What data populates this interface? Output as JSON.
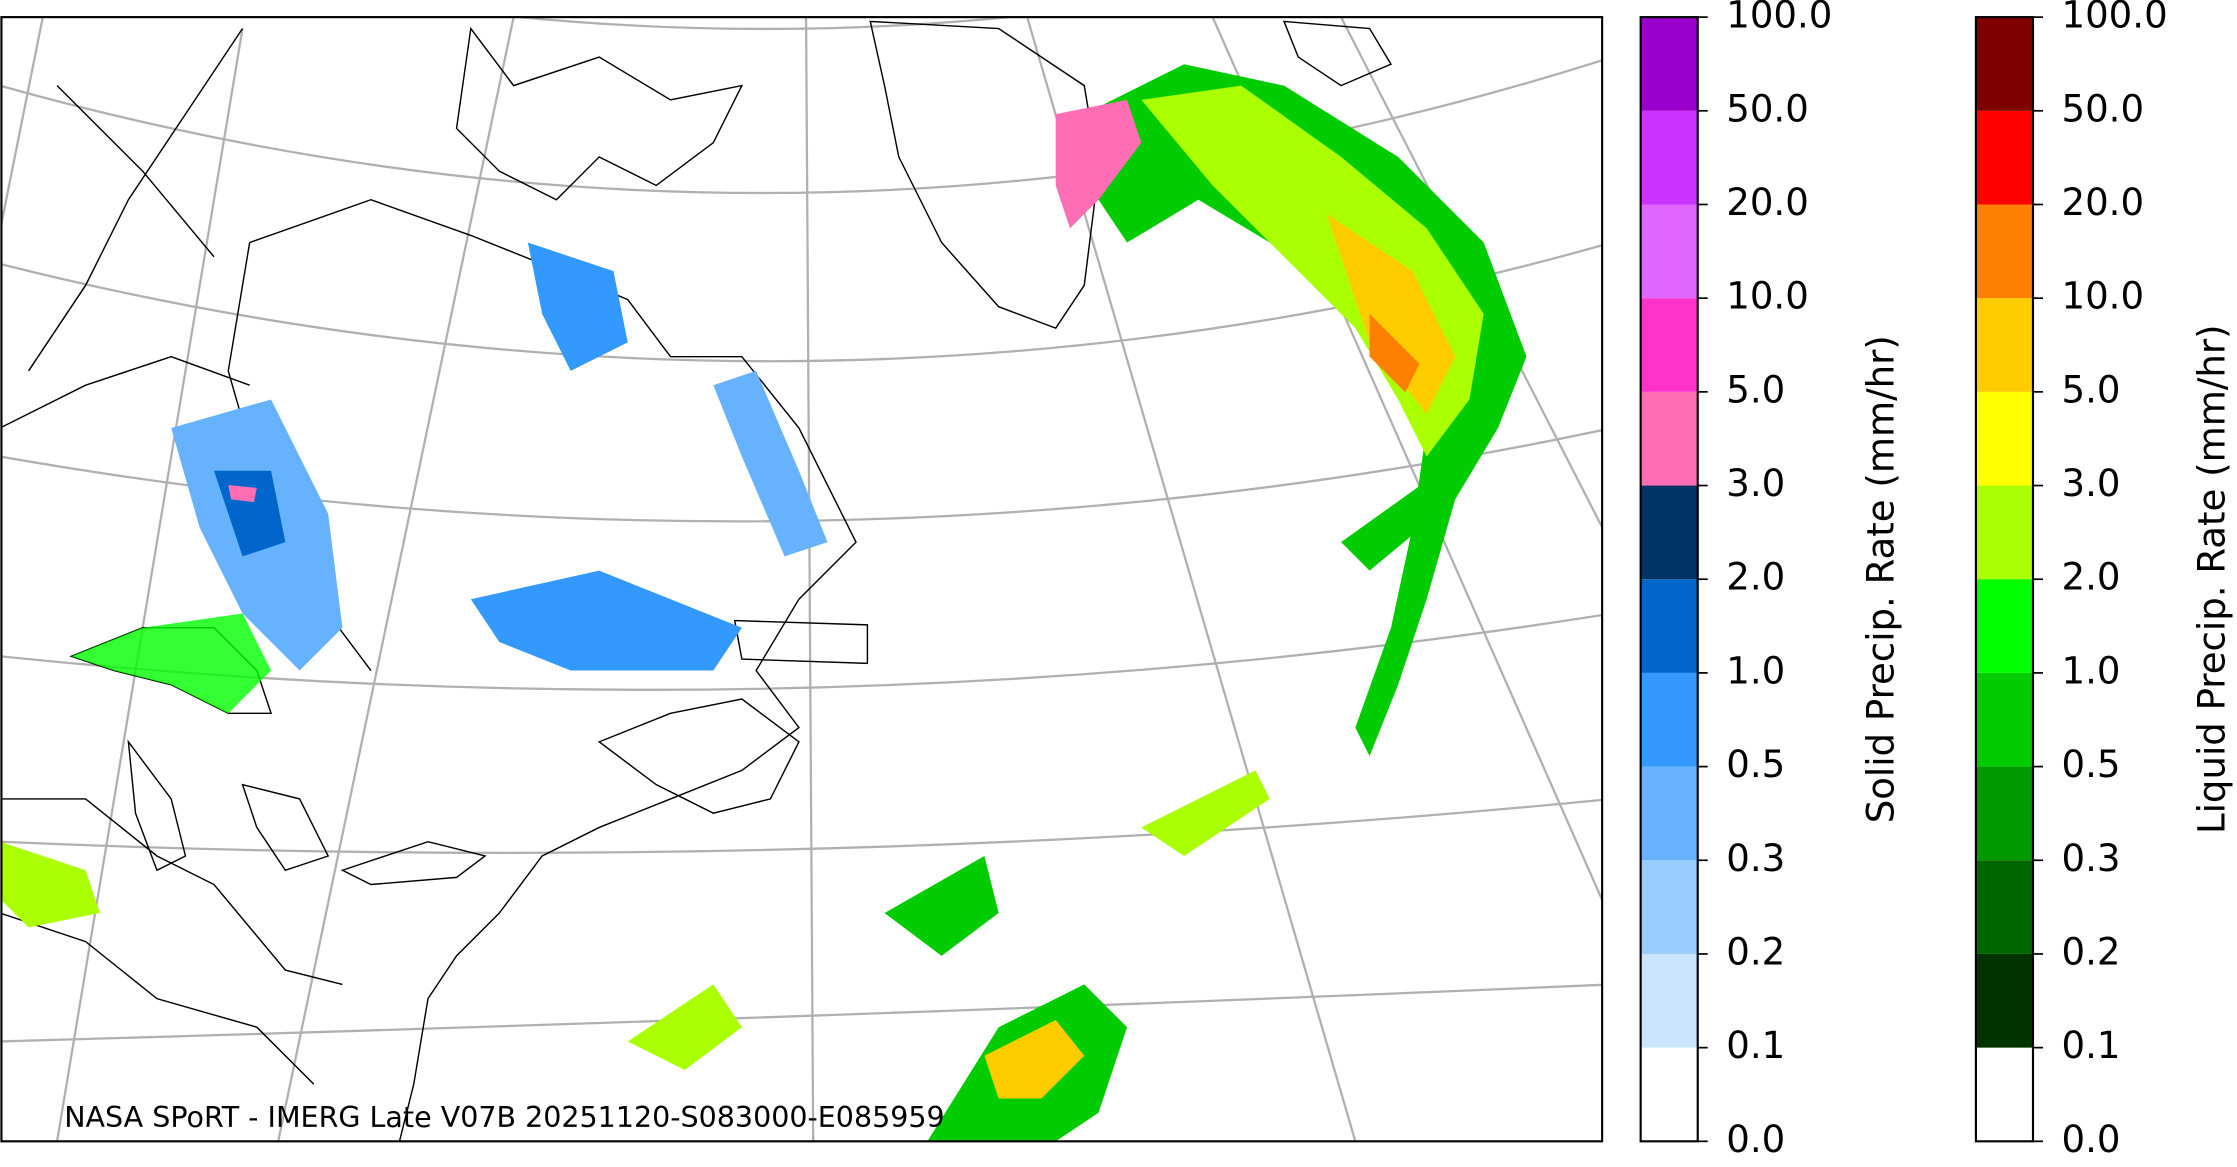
{
  "map": {
    "caption": "NASA SPoRT - IMERG Late V07B 20251120-S083000-E085959"
  },
  "colorbars": [
    {
      "label": "Solid Precip. Rate (mm/hr)",
      "ticks": [
        {
          "value": 0,
          "label": "0.0"
        },
        {
          "value": 0.1,
          "label": "0.1"
        },
        {
          "value": 0.2,
          "label": "0.2"
        },
        {
          "value": 0.3,
          "label": "0.3"
        },
        {
          "value": 0.5,
          "label": "0.5"
        },
        {
          "value": 1,
          "label": "1.0"
        },
        {
          "value": 2,
          "label": "2.0"
        },
        {
          "value": 3,
          "label": "3.0"
        },
        {
          "value": 5,
          "label": "5.0"
        },
        {
          "value": 10,
          "label": "10.0"
        },
        {
          "value": 20,
          "label": "20.0"
        },
        {
          "value": 50,
          "label": "50.0"
        },
        {
          "value": 100,
          "label": "100.0"
        }
      ],
      "colors": [
        "#ffffff",
        "#cce5ff",
        "#99ccff",
        "#66b2ff",
        "#3399ff",
        "#0066cc",
        "#003366",
        "#ff6eb4",
        "#ff33cc",
        "#e066ff",
        "#cc33ff",
        "#9900cc"
      ]
    },
    {
      "label": "Liquid Precip. Rate (mm/hr)",
      "ticks": [
        {
          "value": 0,
          "label": "0.0"
        },
        {
          "value": 0.1,
          "label": "0.1"
        },
        {
          "value": 0.2,
          "label": "0.2"
        },
        {
          "value": 0.3,
          "label": "0.3"
        },
        {
          "value": 0.5,
          "label": "0.5"
        },
        {
          "value": 1,
          "label": "1.0"
        },
        {
          "value": 2,
          "label": "2.0"
        },
        {
          "value": 3,
          "label": "3.0"
        },
        {
          "value": 5,
          "label": "5.0"
        },
        {
          "value": 10,
          "label": "10.0"
        },
        {
          "value": 20,
          "label": "20.0"
        },
        {
          "value": 50,
          "label": "50.0"
        },
        {
          "value": 100,
          "label": "100.0"
        }
      ],
      "colors": [
        "#ffffff",
        "#003300",
        "#006600",
        "#009900",
        "#00cc00",
        "#00ff00",
        "#aaff00",
        "#ffff00",
        "#ffcc00",
        "#ff8000",
        "#ff0000",
        "#800000",
        "#400000"
      ]
    }
  ]
}
